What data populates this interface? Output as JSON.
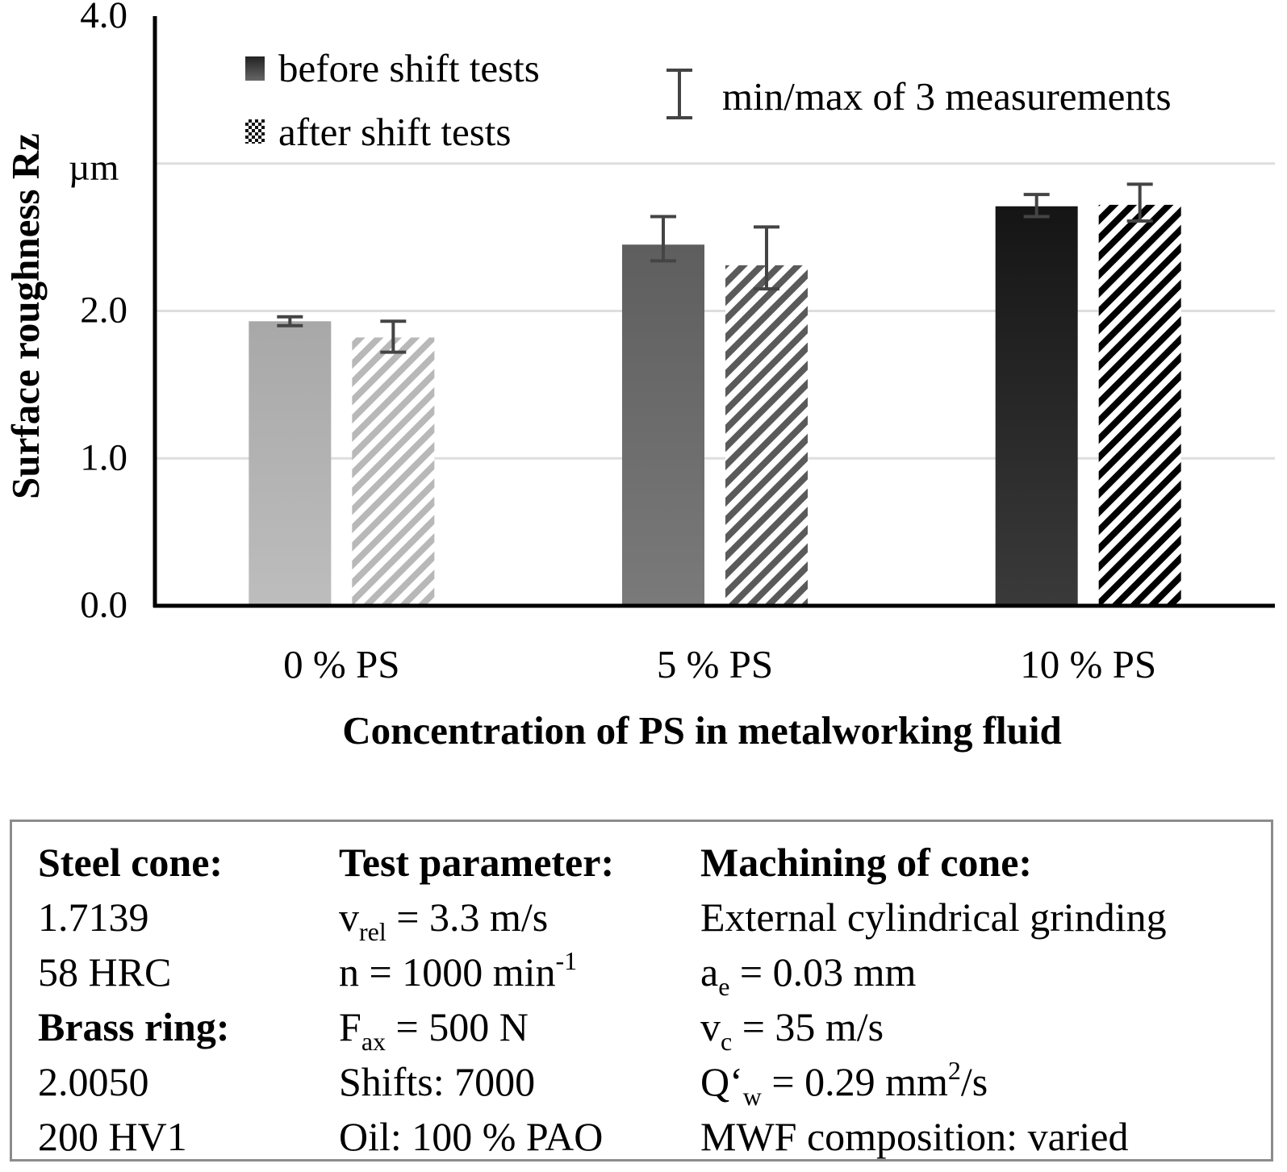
{
  "chart_data": {
    "type": "bar",
    "title": "",
    "xlabel": "Concentration of PS in metalworking fluid",
    "ylabel": "Surface roughness Rz",
    "yunit": "µm",
    "ylim": [
      0,
      4.0
    ],
    "yticks": [
      "0.0",
      "1.0",
      "2.0",
      "4.0"
    ],
    "yticks_values": [
      0,
      1,
      2,
      4
    ],
    "gridlines": [
      1,
      2,
      3
    ],
    "categories": [
      "0 % PS",
      "5 % PS",
      "10 % PS"
    ],
    "series": [
      {
        "name": "before shift tests",
        "values": [
          1.93,
          2.45,
          2.71
        ],
        "err_min": [
          1.9,
          2.34,
          2.64
        ],
        "err_max": [
          1.96,
          2.64,
          2.79
        ],
        "colors": [
          "#b3b3b3",
          "#6b6b6b",
          "#262626"
        ]
      },
      {
        "name": "after shift tests",
        "values": [
          1.82,
          2.31,
          2.72
        ],
        "err_min": [
          1.72,
          2.15,
          2.61
        ],
        "err_max": [
          1.93,
          2.57,
          2.86
        ],
        "colors": [
          "#b8b8b8",
          "#595959",
          "#000000"
        ]
      }
    ],
    "legend": {
      "before": "before shift tests",
      "after": "after shift tests",
      "errorbar": "min/max of 3 measurements"
    }
  },
  "info": {
    "col1": {
      "head1": "Steel cone:",
      "l1": "1.7139",
      "l2": "58 HRC",
      "head2": "Brass ring:",
      "l3": "2.0050",
      "l4": "200 HV1"
    },
    "col2": {
      "head": "Test parameter:",
      "vrel_sym": "v",
      "vrel_sub": "rel",
      "vrel_val": " = 3.3 m/s",
      "n_text": "n = 1000 min",
      "n_sup": "-1",
      "fax_sym": "F",
      "fax_sub": "ax",
      "fax_val": " = 500 N",
      "shifts": "Shifts: 7000",
      "oil": "Oil: 100 % PAO"
    },
    "col3": {
      "head": "Machining of cone:",
      "l1": "External cylindrical grinding",
      "ae_sym": "a",
      "ae_sub": "e",
      "ae_val": " = 0.03 mm",
      "vc_sym": "v",
      "vc_sub": "c",
      "vc_val": " = 35 m/s",
      "qw_sym": "Q‘",
      "qw_sub": "w",
      "qw_val": " = 0.29 mm",
      "qw_sup": "2",
      "qw_unit": "/s",
      "mwf": "MWF composition: varied"
    }
  }
}
